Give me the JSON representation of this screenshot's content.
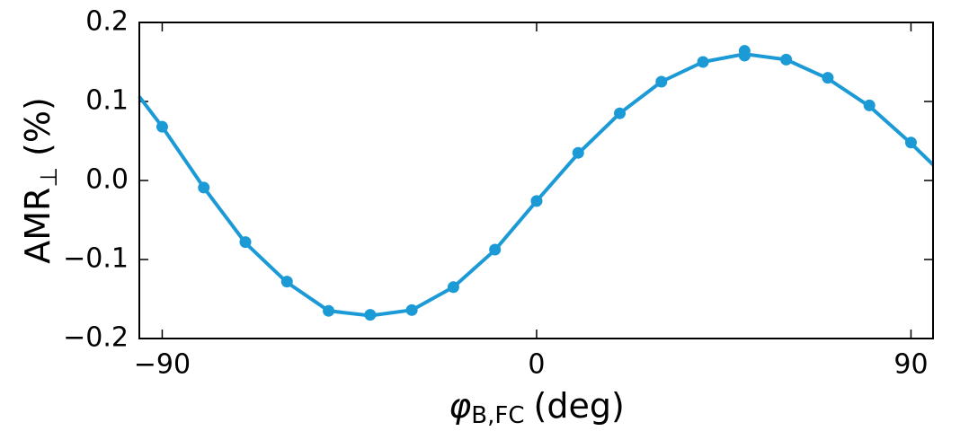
{
  "chart_data": {
    "type": "line",
    "xlabel": {
      "symbol": "φ",
      "sub": "B,FC",
      "unit": "(deg)"
    },
    "ylabel": {
      "main": "AMR",
      "sub": "⊥",
      "unit": "(%)"
    },
    "xlim": [
      -95.5,
      95.3
    ],
    "ylim": [
      -0.2,
      0.2
    ],
    "xticks": [
      {
        "value": -90,
        "label": "−90"
      },
      0,
      90
    ],
    "yticks": [
      {
        "value": -0.2,
        "label": "−0.2"
      },
      {
        "value": -0.1,
        "label": "−0.1"
      },
      {
        "value": 0,
        "label": "0.0"
      },
      0.1,
      0.2
    ],
    "series": [
      {
        "type": "line",
        "color": "#1b9ad6",
        "x": [
          -95.5,
          -90,
          -80,
          -70,
          -60,
          -50,
          -40,
          -30,
          -20,
          -10,
          0,
          10,
          20,
          30,
          40,
          50,
          60,
          70,
          80,
          90,
          95.3
        ],
        "values": [
          0.106,
          0.068,
          -0.009,
          -0.079,
          -0.129,
          -0.165,
          -0.171,
          -0.164,
          -0.135,
          -0.088,
          -0.026,
          0.034,
          0.085,
          0.125,
          0.15,
          0.16,
          0.153,
          0.129,
          0.094,
          0.047,
          0.02
        ]
      },
      {
        "type": "scatter",
        "color": "#1b9ad6",
        "x": [
          -90,
          -80,
          -70,
          -60,
          -50,
          -40,
          -30,
          -20,
          -10,
          0,
          10,
          20,
          30,
          40,
          50,
          50,
          60,
          70,
          80,
          90
        ],
        "values": [
          0.068,
          -0.009,
          -0.078,
          -0.128,
          -0.165,
          -0.17,
          -0.164,
          -0.135,
          -0.0875,
          -0.026,
          0.035,
          0.085,
          0.125,
          0.15,
          0.158,
          0.164,
          0.153,
          0.13,
          0.095,
          0.048
        ]
      }
    ]
  }
}
